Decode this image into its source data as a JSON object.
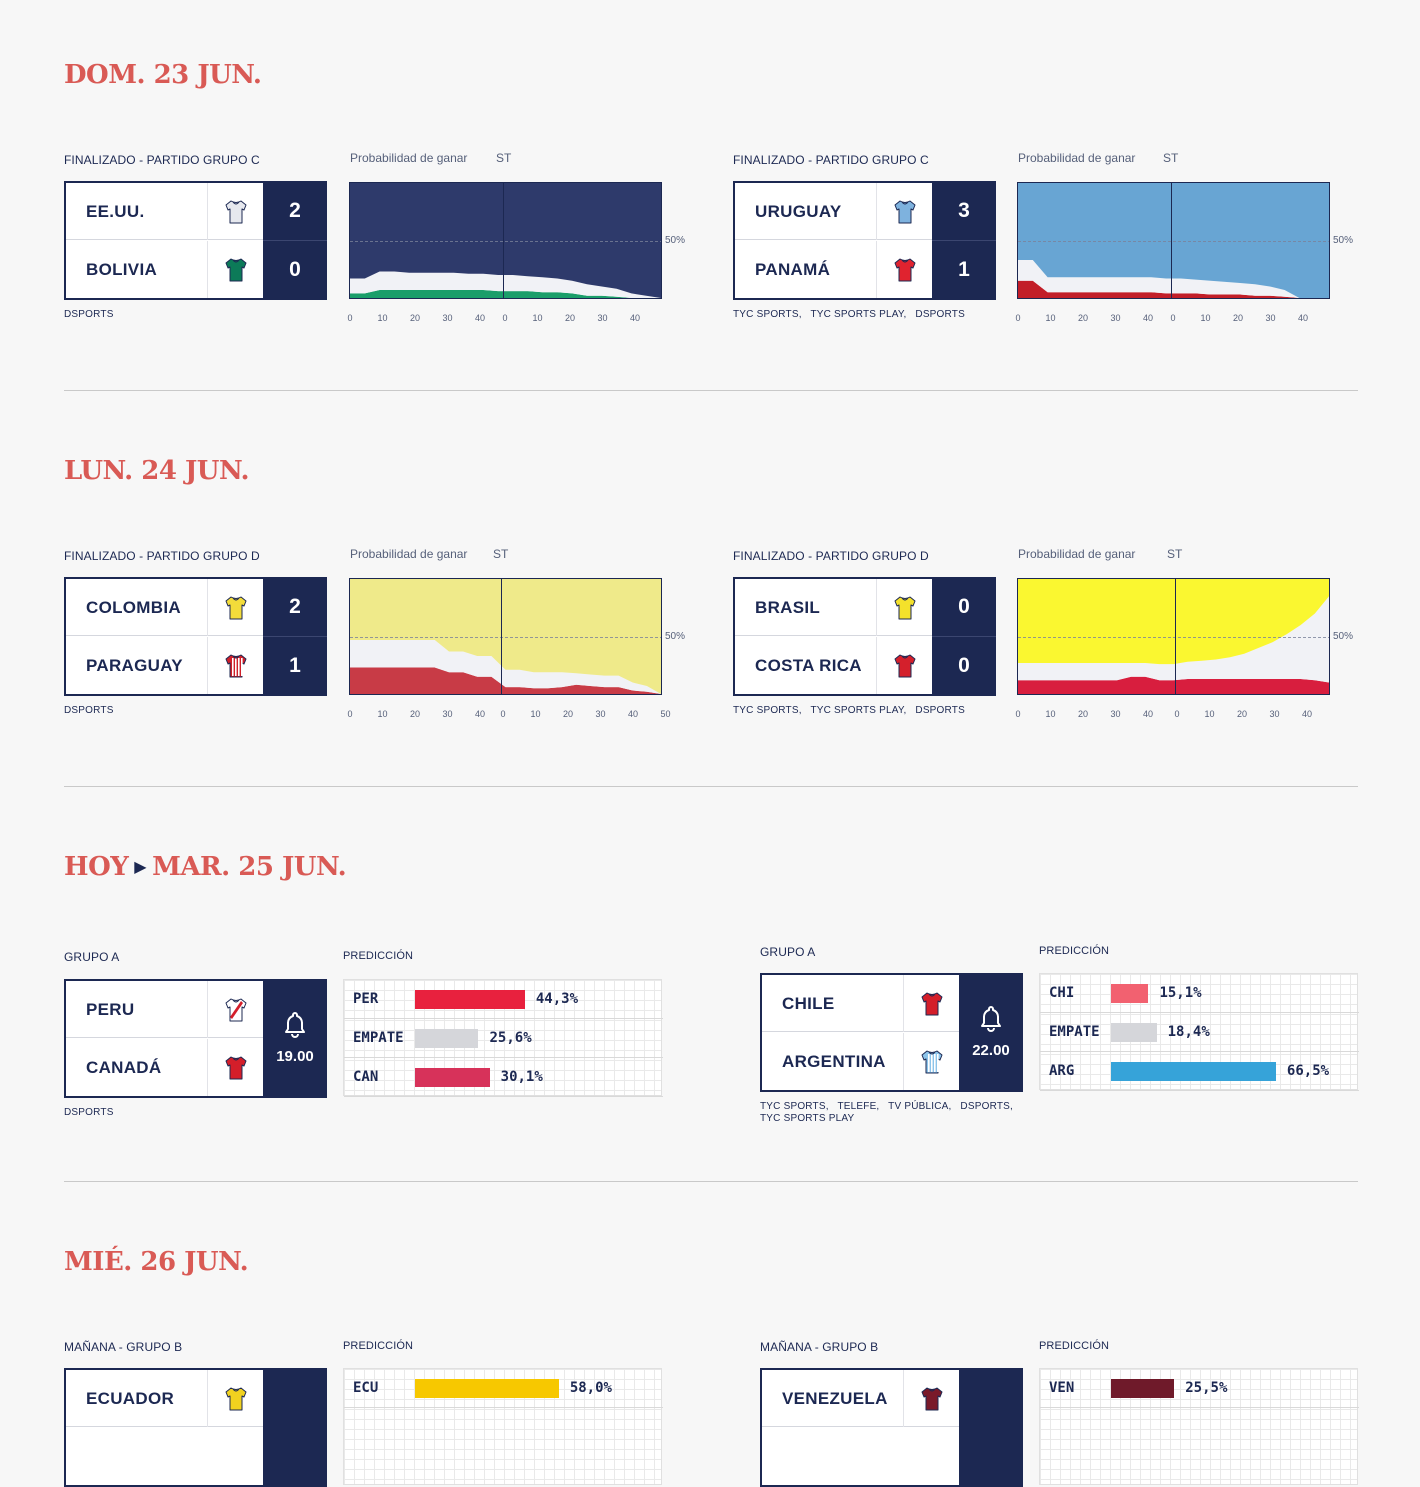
{
  "days": [
    {
      "label": "DOM. 23 JUN."
    },
    {
      "label": "LUN. 24 JUN."
    },
    {
      "today": "HOY",
      "label": "MAR. 25 JUN."
    },
    {
      "label": "MIÉ. 26 JUN."
    }
  ],
  "chart_common": {
    "prob_label": "Probabilidad de ganar",
    "st_label": "ST",
    "fifty_label": "50%"
  },
  "pred_label": "PREDICCIÓN",
  "matches": [
    {
      "status": "FINALIZADO - PARTIDO GRUPO C",
      "team1": "EE.UU.",
      "team2": "BOLIVIA",
      "score1": "2",
      "score2": "0",
      "shirt1": "#e6e8ee",
      "shirt2": "#0c7a58",
      "broadcast": "DSPORTS",
      "chart_data": {
        "type": "area",
        "first_half_ticks": [
          "0",
          "10",
          "20",
          "30",
          "40"
        ],
        "second_half_ticks": [
          "0",
          "10",
          "20",
          "30",
          "40"
        ],
        "colors": {
          "team1": "#2e3a6b",
          "draw": "#f1f2f6",
          "team2": "#1a9e6a"
        },
        "series": [
          {
            "name": "EE.UU.",
            "values_pct": [
              83,
              83,
              77,
              77,
              78,
              78,
              78,
              78,
              79,
              79,
              80,
              80,
              81,
              82,
              83,
              85,
              88,
              90,
              92,
              96,
              98,
              100
            ]
          },
          {
            "name": "Empate",
            "values_pct": [
              13,
              13,
              16,
              16,
              15,
              15,
              15,
              15,
              14,
              14,
              14,
              14,
              13,
              13,
              12,
              11,
              10,
              8,
              7,
              4,
              2,
              0
            ]
          },
          {
            "name": "BOLIVIA",
            "values_pct": [
              4,
              4,
              7,
              7,
              7,
              7,
              7,
              7,
              7,
              7,
              6,
              6,
              6,
              5,
              5,
              4,
              2,
              2,
              1,
              0,
              0,
              0
            ]
          }
        ]
      }
    },
    {
      "status": "FINALIZADO - PARTIDO GRUPO C",
      "team1": "URUGUAY",
      "team2": "PANAMÁ",
      "score1": "3",
      "score2": "1",
      "shirt1": "#7eb2de",
      "shirt2": "#e0232f",
      "broadcast": "TYC SPORTS,   TYC SPORTS PLAY,   DSPORTS",
      "chart_data": {
        "type": "area",
        "first_half_ticks": [
          "0",
          "10",
          "20",
          "30",
          "40"
        ],
        "second_half_ticks": [
          "0",
          "10",
          "20",
          "30",
          "40"
        ],
        "colors": {
          "team1": "#68a5d3",
          "draw": "#f1f2f6",
          "team2": "#c21e28"
        },
        "series": [
          {
            "name": "URUGUAY",
            "values_pct": [
              67,
              67,
              82,
              82,
              82,
              82,
              82,
              82,
              82,
              82,
              83,
              83,
              84,
              85,
              86,
              87,
              88,
              90,
              93,
              100,
              100,
              100
            ]
          },
          {
            "name": "Empate",
            "values_pct": [
              18,
              18,
              13,
              13,
              13,
              13,
              13,
              13,
              13,
              13,
              13,
              13,
              12,
              12,
              11,
              10,
              10,
              8,
              6,
              0,
              0,
              0
            ]
          },
          {
            "name": "PANAMÁ",
            "values_pct": [
              15,
              15,
              5,
              5,
              5,
              5,
              5,
              5,
              5,
              5,
              4,
              4,
              4,
              3,
              3,
              3,
              2,
              2,
              1,
              0,
              0,
              0
            ]
          }
        ]
      }
    },
    {
      "status": "FINALIZADO - PARTIDO GRUPO D",
      "team1": "COLOMBIA",
      "team2": "PARAGUAY",
      "score1": "2",
      "score2": "1",
      "shirt1": "#f3dc3a",
      "shirt2": "#d0202a",
      "broadcast": "DSPORTS",
      "chart_data": {
        "type": "area",
        "first_half_ticks": [
          "0",
          "10",
          "20",
          "30",
          "40"
        ],
        "second_half_ticks": [
          "0",
          "10",
          "20",
          "30",
          "40",
          "50"
        ],
        "colors": {
          "team1": "#efea8a",
          "draw": "#f1f2f6",
          "team2": "#c83b46"
        },
        "series": [
          {
            "name": "COLOMBIA",
            "values_pct": [
              53,
              53,
              53,
              53,
              53,
              53,
              53,
              63,
              63,
              67,
              67,
              79,
              79,
              81,
              81,
              81,
              82,
              83,
              84,
              84,
              90,
              93,
              100
            ]
          },
          {
            "name": "Empate",
            "values_pct": [
              24,
              24,
              24,
              24,
              24,
              24,
              24,
              18,
              18,
              18,
              18,
              15,
              15,
              14,
              14,
              13,
              10,
              10,
              10,
              10,
              7,
              5,
              0
            ]
          },
          {
            "name": "PARAGUAY",
            "values_pct": [
              23,
              23,
              23,
              23,
              23,
              23,
              23,
              19,
              19,
              15,
              15,
              6,
              6,
              5,
              5,
              6,
              8,
              7,
              6,
              6,
              3,
              2,
              0
            ]
          }
        ]
      }
    },
    {
      "status": "FINALIZADO - PARTIDO GRUPO D",
      "team1": "BRASIL",
      "team2": "COSTA RICA",
      "score1": "0",
      "score2": "0",
      "shirt1": "#f4e12b",
      "shirt2": "#d4202c",
      "broadcast": "TYC SPORTS,   TYC SPORTS PLAY,   DSPORTS",
      "chart_data": {
        "type": "area",
        "first_half_ticks": [
          "0",
          "10",
          "20",
          "30",
          "40"
        ],
        "second_half_ticks": [
          "0",
          "10",
          "20",
          "30",
          "40"
        ],
        "colors": {
          "team1": "#faf730",
          "draw": "#f1f2f6",
          "team2": "#d81e3e"
        },
        "series": [
          {
            "name": "BRASIL",
            "values_pct": [
              73,
              73,
              73,
              73,
              73,
              73,
              73,
              73,
              73,
              73,
              74,
              74,
              72,
              71,
              70,
              68,
              65,
              60,
              55,
              48,
              40,
              30,
              15
            ]
          },
          {
            "name": "Empate",
            "values_pct": [
              15,
              15,
              15,
              15,
              15,
              15,
              15,
              15,
              12,
              12,
              14,
              14,
              15,
              16,
              17,
              19,
              22,
              27,
              32,
              39,
              47,
              58,
              75
            ]
          },
          {
            "name": "COSTA RICA",
            "values_pct": [
              12,
              12,
              12,
              12,
              12,
              12,
              12,
              12,
              15,
              15,
              12,
              12,
              13,
              13,
              13,
              13,
              13,
              13,
              13,
              13,
              13,
              12,
              10
            ]
          }
        ]
      }
    }
  ],
  "upcoming": [
    {
      "status": "GRUPO A",
      "team1": "PERU",
      "team2": "CANADÁ",
      "time": "19.00",
      "shirt1": "#ffffff",
      "shirt2": "#d41e2a",
      "broadcast": "DSPORTS",
      "prediction": [
        {
          "label": "PER",
          "value": 44.3,
          "text": "44,3%",
          "color": "#e8213e"
        },
        {
          "label": "EMPATE",
          "value": 25.6,
          "text": "25,6%",
          "color": "#d5d6da"
        },
        {
          "label": "CAN",
          "value": 30.1,
          "text": "30,1%",
          "color": "#d7325a"
        }
      ]
    },
    {
      "status": "GRUPO A",
      "team1": "CHILE",
      "team2": "ARGENTINA",
      "time": "22.00",
      "shirt1": "#d41e2a",
      "shirt2": "#8cc4ea",
      "broadcast_line1": "TYC SPORTS,   TELEFE,   TV PÚBLICA,   DSPORTS,",
      "broadcast_line2": "TYC SPORTS PLAY",
      "prediction": [
        {
          "label": "CHI",
          "value": 15.1,
          "text": "15,1%",
          "color": "#f26170"
        },
        {
          "label": "EMPATE",
          "value": 18.4,
          "text": "18,4%",
          "color": "#d5d6da"
        },
        {
          "label": "ARG",
          "value": 66.5,
          "text": "66,5%",
          "color": "#36a3d9"
        }
      ]
    },
    {
      "status": "MAÑANA - GRUPO B",
      "team1": "ECUADOR",
      "shirt1": "#f1d21f",
      "prediction": [
        {
          "label": "ECU",
          "value": 58.0,
          "text": "58,0%",
          "color": "#f7c800"
        }
      ]
    },
    {
      "status": "MAÑANA - GRUPO B",
      "team1": "VENEZUELA",
      "shirt1": "#7a1a2a",
      "prediction": [
        {
          "label": "VEN",
          "value": 25.5,
          "text": "25,5%",
          "color": "#6f1a2a"
        }
      ]
    }
  ]
}
